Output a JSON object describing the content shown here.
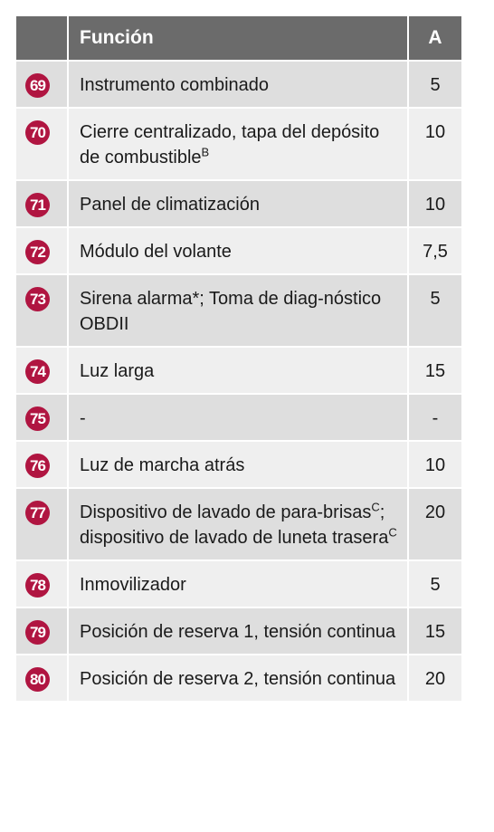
{
  "table": {
    "header": [
      "Función",
      "A"
    ],
    "rows": [
      {
        "number": "69",
        "function": [
          {
            "text": "Instrumento combinado"
          }
        ],
        "amps": "5"
      },
      {
        "number": "70",
        "function": [
          {
            "text": "Cierre centralizado, tapa del depósito de combustible"
          },
          {
            "sup": "B"
          }
        ],
        "amps": "10"
      },
      {
        "number": "71",
        "function": [
          {
            "text": "Panel de climatización"
          }
        ],
        "amps": "10"
      },
      {
        "number": "72",
        "function": [
          {
            "text": "Módulo del volante"
          }
        ],
        "amps": "7,5"
      },
      {
        "number": "73",
        "function": [
          {
            "text": "Sirena alarma*; Toma de diag-nóstico OBDII"
          }
        ],
        "amps": "5"
      },
      {
        "number": "74",
        "function": [
          {
            "text": "Luz larga"
          }
        ],
        "amps": "15"
      },
      {
        "number": "75",
        "function": [
          {
            "text": "-"
          }
        ],
        "amps": "-"
      },
      {
        "number": "76",
        "function": [
          {
            "text": "Luz de marcha atrás"
          }
        ],
        "amps": "10"
      },
      {
        "number": "77",
        "function": [
          {
            "text": "Dispositivo de lavado de para-brisas"
          },
          {
            "sup": "C"
          },
          {
            "text": "; dispositivo de lavado de luneta trasera"
          },
          {
            "sup": "C"
          }
        ],
        "amps": "20"
      },
      {
        "number": "78",
        "function": [
          {
            "text": "Inmovilizador"
          }
        ],
        "amps": "5"
      },
      {
        "number": "79",
        "function": [
          {
            "text": "Posición de reserva 1, tensión continua"
          }
        ],
        "amps": "15"
      },
      {
        "number": "80",
        "function": [
          {
            "text": "Posición de reserva 2, tensión continua"
          }
        ],
        "amps": "20"
      }
    ]
  }
}
